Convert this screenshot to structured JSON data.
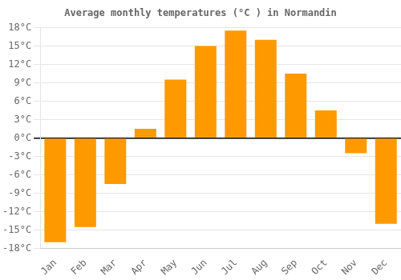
{
  "chart_data": {
    "type": "bar",
    "title": "Average monthly temperatures (°C ) in Normandin",
    "categories": [
      "Jan",
      "Feb",
      "Mar",
      "Apr",
      "May",
      "Jun",
      "Jul",
      "Aug",
      "Sep",
      "Oct",
      "Nov",
      "Dec"
    ],
    "values": [
      -17.0,
      -14.5,
      -7.5,
      1.5,
      9.5,
      15.0,
      17.5,
      16.0,
      10.5,
      4.5,
      -2.5,
      -14.0
    ],
    "color": "#FF9900",
    "ylim": [
      -18,
      18
    ],
    "yticks": [
      {
        "value": -18,
        "label": "-18°C"
      },
      {
        "value": -15,
        "label": "-15°C"
      },
      {
        "value": -12,
        "label": "-12°C"
      },
      {
        "value": -9,
        "label": "-9°C"
      },
      {
        "value": -6,
        "label": "-6°C"
      },
      {
        "value": -3,
        "label": "-3°C"
      },
      {
        "value": 0,
        "label": "0°C"
      },
      {
        "value": 3,
        "label": "3°C"
      },
      {
        "value": 6,
        "label": "6°C"
      },
      {
        "value": 9,
        "label": "9°C"
      },
      {
        "value": 12,
        "label": "12°C"
      },
      {
        "value": 15,
        "label": "15°C"
      },
      {
        "value": 18,
        "label": "18°C"
      }
    ],
    "grid": true
  }
}
